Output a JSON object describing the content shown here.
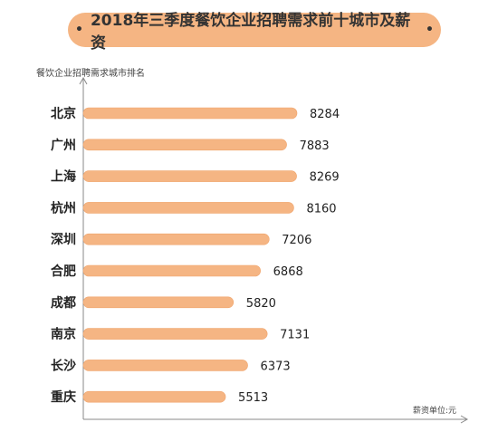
{
  "title": "2018年三季度餐饮企业招聘需求前十城市及薪资",
  "title_bullet": "•",
  "ylabel": "餐饮企业招聘需求城市排名",
  "unit_note": "薪资单位:元",
  "colors": {
    "title_bg": "#f5b583",
    "bar": "#f5b583",
    "bar_edge": "#f0a56d",
    "axis": "#888888"
  },
  "chart_data": {
    "type": "bar",
    "orientation": "horizontal",
    "categories": [
      "北京",
      "广州",
      "上海",
      "杭州",
      "深圳",
      "合肥",
      "成都",
      "南京",
      "长沙",
      "重庆"
    ],
    "values": [
      8284,
      7883,
      8269,
      8160,
      7206,
      6868,
      5820,
      7131,
      6373,
      5513
    ],
    "title": "2018年三季度餐饮企业招聘需求前十城市及薪资",
    "ylabel": "餐饮企业招聘需求城市排名",
    "unit": "薪资单位:元",
    "xlim": [
      0,
      9000
    ],
    "grid": false,
    "legend": "none"
  }
}
